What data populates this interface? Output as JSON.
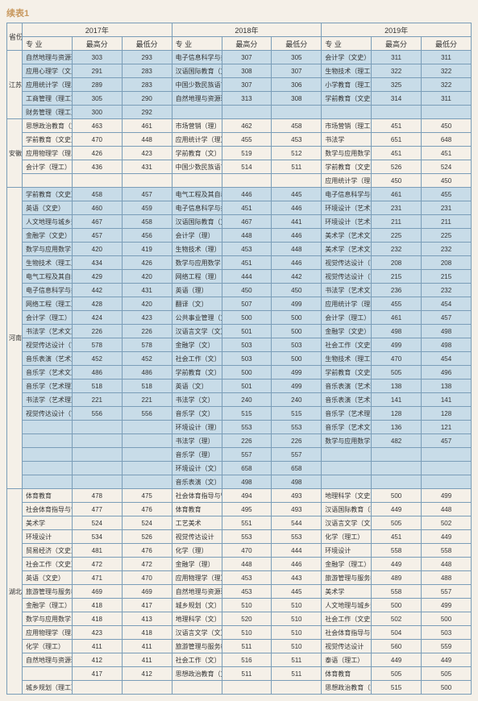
{
  "title": "续表1",
  "header": {
    "prov": "省份",
    "year1": "2017年",
    "year2": "2018年",
    "year3": "2019年",
    "major": "专 业",
    "hi": "最高分",
    "lo": "最低分"
  },
  "provinces": [
    {
      "name": "江苏",
      "rows": [
        {
          "c": "b",
          "m1": "自然地理与资源环境（文史）",
          "h1": "303",
          "l1": "293",
          "m2": "电子信息科学与技术（理）",
          "h2": "307",
          "l2": "305",
          "m3": "会计学（文史）",
          "h3": "311",
          "l3": "311"
        },
        {
          "c": "b",
          "m1": "应用心理学（文史）",
          "h1": "291",
          "l1": "283",
          "m2": "汉语国际教育（文）",
          "h2": "308",
          "l2": "307",
          "m3": "生物技术（理工）",
          "h3": "322",
          "l3": "322"
        },
        {
          "c": "b",
          "m1": "应用统计学（理工）",
          "h1": "289",
          "l1": "283",
          "m2": "中国少数民族语言文学（文）",
          "h2": "307",
          "l2": "306",
          "m3": "小学教育（理工）",
          "h3": "325",
          "l3": "322"
        },
        {
          "c": "b",
          "m1": "工商管理（理工）",
          "h1": "305",
          "l1": "290",
          "m2": "自然地理与资源环境（文）",
          "h2": "313",
          "l2": "308",
          "m3": "学前教育（文史）",
          "h3": "314",
          "l3": "311"
        },
        {
          "c": "b",
          "m1": "财务管理（理工）",
          "h1": "300",
          "l1": "292",
          "m2": "",
          "h2": "",
          "l2": "",
          "m3": "",
          "h3": "",
          "l3": ""
        }
      ]
    },
    {
      "name": "安徽",
      "rows": [
        {
          "c": "t",
          "m1": "思想政治教育（文史）",
          "h1": "463",
          "l1": "461",
          "m2": "市场营销（理）",
          "h2": "462",
          "l2": "458",
          "m3": "市场营销（理工）",
          "h3": "451",
          "l3": "450"
        },
        {
          "c": "t",
          "m1": "学前教育（文史）",
          "h1": "470",
          "l1": "448",
          "m2": "应用统计学（理）",
          "h2": "455",
          "l2": "453",
          "m3": "书法学",
          "h3": "651",
          "l3": "648"
        },
        {
          "c": "t",
          "m1": "应用物理学（理工）",
          "h1": "426",
          "l1": "423",
          "m2": "学前教育（文）",
          "h2": "519",
          "l2": "512",
          "m3": "数学与应用数学（理工）",
          "h3": "451",
          "l3": "451"
        },
        {
          "c": "t",
          "m1": "会计学（理工）",
          "h1": "436",
          "l1": "431",
          "m2": "中国少数民族语言文学（文）",
          "h2": "514",
          "l2": "511",
          "m3": "学前教育（文史）",
          "h3": "526",
          "l3": "524"
        },
        {
          "c": "t",
          "m1": "",
          "h1": "",
          "l1": "",
          "m2": "",
          "h2": "",
          "l2": "",
          "m3": "应用统计学（理工）",
          "h3": "450",
          "l3": "450"
        }
      ]
    },
    {
      "name": "河南",
      "rows": [
        {
          "c": "b",
          "m1": "学前教育（文史）",
          "h1": "458",
          "l1": "457",
          "m2": "电气工程及其自动化（理）",
          "h2": "446",
          "l2": "445",
          "m3": "电子信息科学与技术（理工）",
          "h3": "461",
          "l3": "455"
        },
        {
          "c": "b",
          "m1": "英语（文史）",
          "h1": "460",
          "l1": "459",
          "m2": "电子信息科学与技术（理）",
          "h2": "451",
          "l2": "446",
          "m3": "环境设计（艺术文）",
          "h3": "231",
          "l3": "231"
        },
        {
          "c": "b",
          "m1": "人文地理与城乡规划（文史）",
          "h1": "467",
          "l1": "458",
          "m2": "汉语国际教育（文）",
          "h2": "467",
          "l2": "441",
          "m3": "环境设计（艺术理）",
          "h3": "211",
          "l3": "211"
        },
        {
          "c": "b",
          "m1": "金融学（文史）",
          "h1": "457",
          "l1": "456",
          "m2": "会计学（理）",
          "h2": "448",
          "l2": "446",
          "m3": "美术学（艺术文）",
          "h3": "225",
          "l3": "225"
        },
        {
          "c": "b",
          "m1": "数学与应用数学（理工）",
          "h1": "420",
          "l1": "419",
          "m2": "生物技术（理）",
          "h2": "453",
          "l2": "448",
          "m3": "美术学（艺术文）",
          "h3": "232",
          "l3": "232"
        },
        {
          "c": "b",
          "m1": "生物技术（理工）",
          "h1": "434",
          "l1": "426",
          "m2": "数学与应用数学（理）",
          "h2": "451",
          "l2": "446",
          "m3": "视觉传达设计（艺术文）",
          "h3": "208",
          "l3": "208"
        },
        {
          "c": "b",
          "m1": "电气工程及其自动化（理工）",
          "h1": "429",
          "l1": "420",
          "m2": "网络工程（理）",
          "h2": "444",
          "l2": "442",
          "m3": "视觉传达设计（艺术理）",
          "h3": "215",
          "l3": "215"
        },
        {
          "c": "b",
          "m1": "电子信息科学与技术（理工）",
          "h1": "442",
          "l1": "431",
          "m2": "英语（理）",
          "h2": "450",
          "l2": "450",
          "m3": "书法学（艺术文）",
          "h3": "236",
          "l3": "232"
        },
        {
          "c": "b",
          "m1": "网络工程（理工）",
          "h1": "428",
          "l1": "420",
          "m2": "翻译（文）",
          "h2": "507",
          "l2": "499",
          "m3": "应用统计学（理工）",
          "h3": "455",
          "l3": "454"
        },
        {
          "c": "b",
          "m1": "会计学（理工）",
          "h1": "424",
          "l1": "423",
          "m2": "公共事业管理（文）",
          "h2": "500",
          "l2": "500",
          "m3": "会计学（理工）",
          "h3": "461",
          "l3": "457"
        },
        {
          "c": "b",
          "m1": "书法学（艺术文）",
          "h1": "226",
          "l1": "226",
          "m2": "汉语言文学（文）",
          "h2": "501",
          "l2": "500",
          "m3": "金融学（文史）",
          "h3": "498",
          "l3": "498"
        },
        {
          "c": "b",
          "m1": "视觉传达设计（艺术文）",
          "h1": "578",
          "l1": "578",
          "m2": "金融学（文）",
          "h2": "503",
          "l2": "503",
          "m3": "社会工作（文史）",
          "h3": "499",
          "l3": "498"
        },
        {
          "c": "b",
          "m1": "音乐表演（艺术文）",
          "h1": "452",
          "l1": "452",
          "m2": "社会工作（文）",
          "h2": "503",
          "l2": "500",
          "m3": "生物技术（理工）",
          "h3": "470",
          "l3": "454"
        },
        {
          "c": "b",
          "m1": "音乐学（艺术文）",
          "h1": "486",
          "l1": "486",
          "m2": "学前教育（文）",
          "h2": "500",
          "l2": "499",
          "m3": "学前教育（文史）",
          "h3": "505",
          "l3": "496"
        },
        {
          "c": "b",
          "m1": "音乐学（艺术理）",
          "h1": "518",
          "l1": "518",
          "m2": "英语（文）",
          "h2": "501",
          "l2": "499",
          "m3": "音乐表演（艺术理）",
          "h3": "138",
          "l3": "138"
        },
        {
          "c": "b",
          "m1": "书法学（艺术理）",
          "h1": "221",
          "l1": "221",
          "m2": "书法学（文）",
          "h2": "240",
          "l2": "240",
          "m3": "音乐表演（艺术文）",
          "h3": "141",
          "l3": "141"
        },
        {
          "c": "b",
          "m1": "视觉传达设计（艺术理）",
          "h1": "556",
          "l1": "556",
          "m2": "音乐学（文）",
          "h2": "515",
          "l2": "515",
          "m3": "音乐学（艺术理）",
          "h3": "128",
          "l3": "128"
        },
        {
          "c": "b",
          "m1": "",
          "h1": "",
          "l1": "",
          "m2": "环境设计（理）",
          "h2": "553",
          "l2": "553",
          "m3": "音乐学（艺术文）",
          "h3": "136",
          "l3": "121"
        },
        {
          "c": "b",
          "m1": "",
          "h1": "",
          "l1": "",
          "m2": "书法学（理）",
          "h2": "226",
          "l2": "226",
          "m3": "数学与应用数学（理工）",
          "h3": "482",
          "l3": "457"
        },
        {
          "c": "b",
          "m1": "",
          "h1": "",
          "l1": "",
          "m2": "音乐学（理）",
          "h2": "557",
          "l2": "557",
          "m3": "",
          "h3": "",
          "l3": ""
        },
        {
          "c": "b",
          "m1": "",
          "h1": "",
          "l1": "",
          "m2": "环境设计（文）",
          "h2": "658",
          "l2": "658",
          "m3": "",
          "h3": "",
          "l3": ""
        },
        {
          "c": "b",
          "m1": "",
          "h1": "",
          "l1": "",
          "m2": "音乐表演（文）",
          "h2": "498",
          "l2": "498",
          "m3": "",
          "h3": "",
          "l3": ""
        }
      ]
    },
    {
      "name": "湖北",
      "rows": [
        {
          "c": "t",
          "m1": "体育教育",
          "h1": "478",
          "l1": "475",
          "m2": "社会体育指导与管理",
          "h2": "494",
          "l2": "493",
          "m3": "地理科学（文史）",
          "h3": "500",
          "l3": "499"
        },
        {
          "c": "t",
          "m1": "社会体育指导与管理",
          "h1": "477",
          "l1": "476",
          "m2": "体育教育",
          "h2": "495",
          "l2": "493",
          "m3": "汉语国际教育（理工）",
          "h3": "449",
          "l3": "448"
        },
        {
          "c": "t",
          "m1": "美术学",
          "h1": "524",
          "l1": "524",
          "m2": "工艺美术",
          "h2": "551",
          "l2": "544",
          "m3": "汉语言文学（文史）",
          "h3": "505",
          "l3": "502"
        },
        {
          "c": "t",
          "m1": "环境设计",
          "h1": "534",
          "l1": "526",
          "m2": "视觉传达设计",
          "h2": "553",
          "l2": "553",
          "m3": "化学（理工）",
          "h3": "451",
          "l3": "449"
        },
        {
          "c": "t",
          "m1": "贸易经济（文史）",
          "h1": "481",
          "l1": "476",
          "m2": "化学（理）",
          "h2": "470",
          "l2": "444",
          "m3": "环境设计",
          "h3": "558",
          "l3": "558"
        },
        {
          "c": "t",
          "m1": "社会工作（文史）",
          "h1": "472",
          "l1": "472",
          "m2": "金融学（理）",
          "h2": "448",
          "l2": "446",
          "m3": "金融学（理工）",
          "h3": "449",
          "l3": "448"
        },
        {
          "c": "t",
          "m1": "英语（文史）",
          "h1": "471",
          "l1": "470",
          "m2": "应用物理学（理）",
          "h2": "453",
          "l2": "443",
          "m3": "旅游管理与服务教育（文史）",
          "h3": "489",
          "l3": "488"
        },
        {
          "c": "t",
          "m1": "旅游管理与服务教育（文史）",
          "h1": "469",
          "l1": "469",
          "m2": "自然地理与资源环境（理）",
          "h2": "453",
          "l2": "445",
          "m3": "美术学",
          "h3": "558",
          "l3": "557"
        },
        {
          "c": "t",
          "m1": "金融学（理工）",
          "h1": "418",
          "l1": "417",
          "m2": "城乡规划（文）",
          "h2": "510",
          "l2": "510",
          "m3": "人文地理与城乡规划（文史）",
          "h3": "500",
          "l3": "499"
        },
        {
          "c": "t",
          "m1": "数学与应用数学（理工）",
          "h1": "418",
          "l1": "413",
          "m2": "地理科学（文）",
          "h2": "520",
          "l2": "510",
          "m3": "社会工作（文史）",
          "h3": "502",
          "l3": "500"
        },
        {
          "c": "t",
          "m1": "应用物理学（理工）",
          "h1": "423",
          "l1": "418",
          "m2": "汉语言文学（文）",
          "h2": "510",
          "l2": "510",
          "m3": "社会体育指导与管理",
          "h3": "504",
          "l3": "503"
        },
        {
          "c": "t",
          "m1": "化学（理工）",
          "h1": "411",
          "l1": "411",
          "m2": "旅游管理与服务教育（文）",
          "h2": "511",
          "l2": "510",
          "m3": "视觉传达设计",
          "h3": "560",
          "l3": "559"
        },
        {
          "c": "t",
          "m1": "自然地理与资源环境（理工）",
          "h1": "412",
          "l1": "411",
          "m2": "社会工作（文）",
          "h2": "516",
          "l2": "511",
          "m3": "泰语（理工）",
          "h3": "449",
          "l3": "449"
        },
        {
          "c": "t",
          "m1": "",
          "h1": "417",
          "l1": "412",
          "m2": "思想政治教育（文）",
          "h2": "511",
          "l2": "511",
          "m3": "体育教育",
          "h3": "505",
          "l3": "505"
        },
        {
          "c": "t",
          "m1": "城乡规划（理工）",
          "h1": "",
          "l1": "",
          "m2": "",
          "h2": "",
          "l2": "",
          "m3": "思想政治教育（文史）",
          "h3": "515",
          "l3": "500"
        }
      ]
    }
  ]
}
